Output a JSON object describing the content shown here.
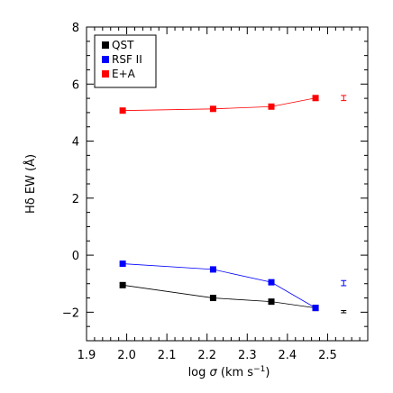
{
  "chart_data": {
    "type": "line",
    "title": "",
    "xlabel": "log σ (km s⁻¹)",
    "xlabel_parts": {
      "pre": "log ",
      "sym": "σ",
      "mid": " (km s",
      "sup": "−1",
      "post": ")"
    },
    "ylabel": "Hδ EW (Å)",
    "xlim": [
      1.9,
      2.6
    ],
    "ylim": [
      -3,
      8
    ],
    "xticks": [
      1.9,
      2.0,
      2.1,
      2.2,
      2.3,
      2.4,
      2.5
    ],
    "xtick_labels": [
      "1.9",
      "2.0",
      "2.1",
      "2.2",
      "2.3",
      "2.4",
      "2.5"
    ],
    "yticks": [
      -2,
      0,
      2,
      4,
      6,
      8
    ],
    "ytick_labels": [
      "−2",
      "0",
      "2",
      "4",
      "6",
      "8"
    ],
    "legend_position": "top-left",
    "series": [
      {
        "name": "QST",
        "color": "#000000",
        "x": [
          1.99,
          2.215,
          2.36,
          2.47
        ],
        "y": [
          -1.05,
          -1.5,
          -1.63,
          -1.85
        ],
        "error_bar": {
          "x": 2.54,
          "y": -1.98,
          "err": 0.04
        }
      },
      {
        "name": "RSF II",
        "color": "#0000ff",
        "x": [
          1.99,
          2.215,
          2.36,
          2.47
        ],
        "y": [
          -0.3,
          -0.5,
          -0.95,
          -1.85
        ],
        "error_bar": {
          "x": 2.54,
          "y": -0.98,
          "err": 0.09
        }
      },
      {
        "name": "E+A",
        "color": "#ff0000",
        "x": [
          1.99,
          2.215,
          2.36,
          2.47
        ],
        "y": [
          5.07,
          5.13,
          5.21,
          5.51
        ],
        "error_bar": {
          "x": 2.54,
          "y": 5.51,
          "err": 0.09
        }
      }
    ]
  }
}
